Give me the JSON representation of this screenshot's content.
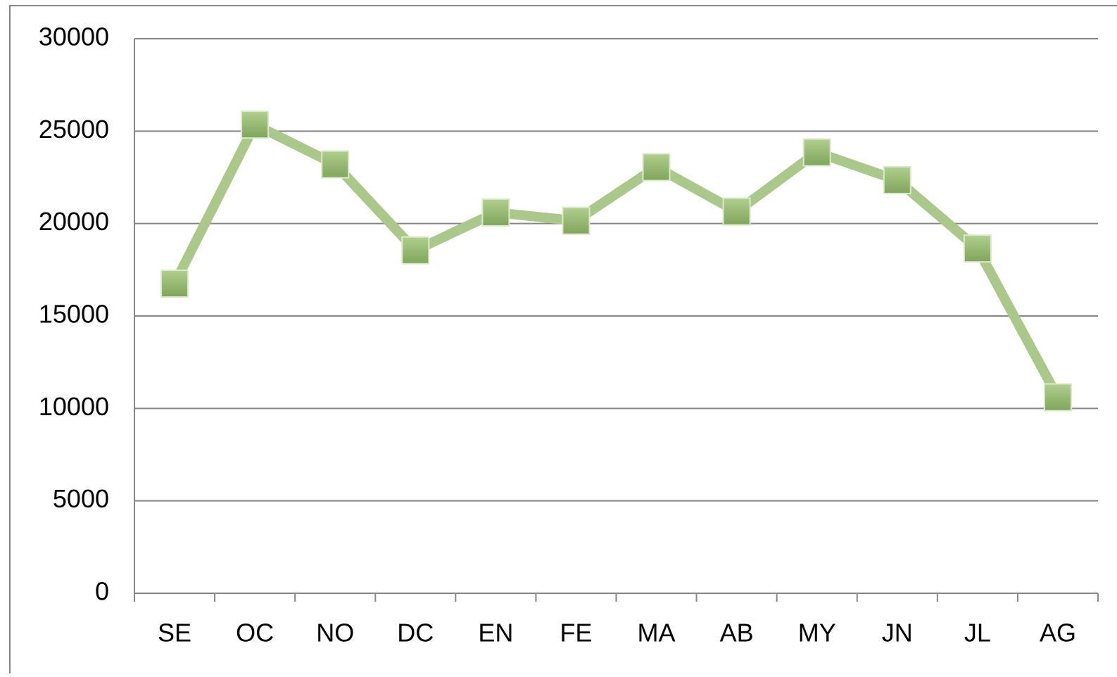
{
  "chart_data": {
    "type": "line",
    "categories": [
      "SE",
      "OC",
      "NO",
      "DC",
      "EN",
      "FE",
      "MA",
      "AB",
      "MY",
      "JN",
      "JL",
      "AG"
    ],
    "series": [
      {
        "color": "#a9c88a",
        "marker_color": "#8db26a",
        "values": [
          16750,
          25350,
          23200,
          18550,
          20600,
          20150,
          23050,
          20650,
          23850,
          22350,
          18650,
          10600
        ]
      }
    ],
    "ylim": [
      0,
      30000
    ],
    "yticks": [
      0,
      5000,
      10000,
      15000,
      20000,
      25000,
      30000
    ],
    "grid": true
  }
}
